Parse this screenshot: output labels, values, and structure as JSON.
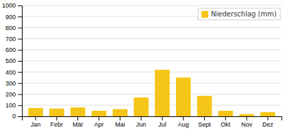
{
  "chart_data": {
    "type": "bar",
    "categories": [
      "Jan",
      "Febr",
      "Mär",
      "Apr",
      "Mai",
      "Jun",
      "Jul",
      "Aug",
      "Sept",
      "Okt",
      "Nov",
      "Dez"
    ],
    "series": [
      {
        "name": "Niederschlag (mm)",
        "color": "#F5C518",
        "values": [
          75,
          70,
          80,
          50,
          65,
          170,
          420,
          350,
          185,
          50,
          20,
          38
        ]
      }
    ],
    "ylim": [
      0,
      1000
    ],
    "yticks": [
      0,
      100,
      200,
      300,
      400,
      500,
      600,
      700,
      800,
      900,
      1000
    ],
    "grid": true,
    "legend": "top-right"
  }
}
